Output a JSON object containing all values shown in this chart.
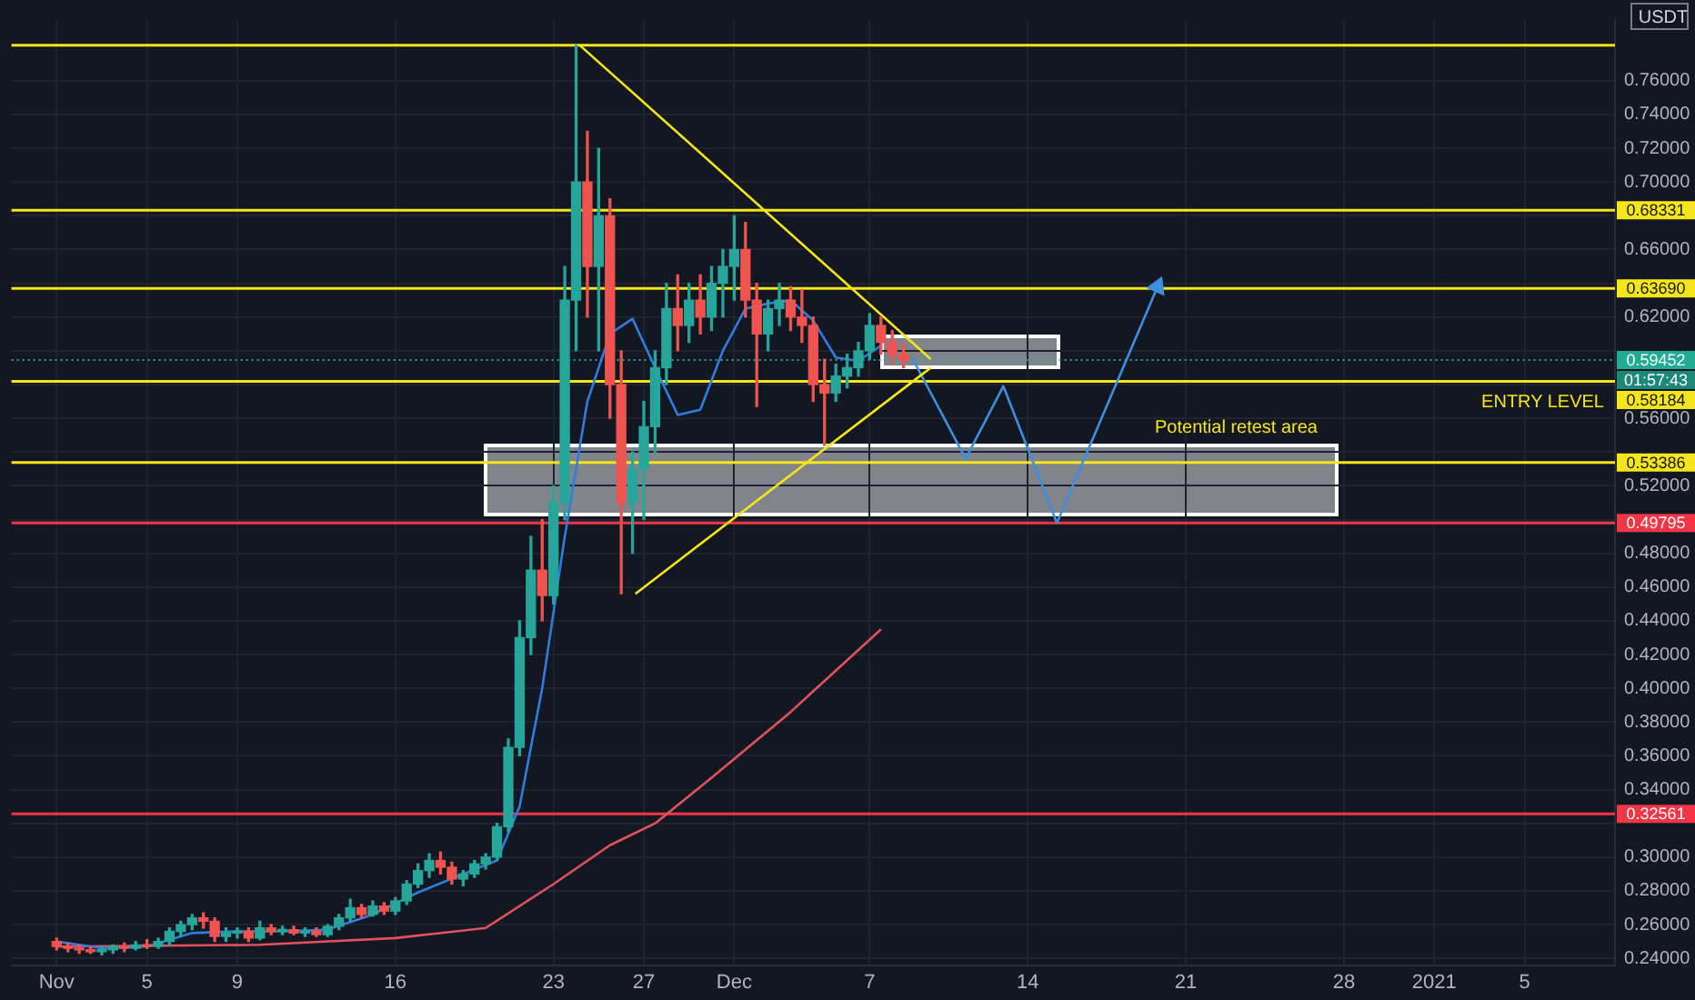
{
  "chart_data": {
    "type": "candlestick",
    "x": [
      "2020-11-01T00:00",
      "2020-11-01T12:00",
      "2020-11-02T00:00",
      "2020-11-02T12:00",
      "2020-11-03T00:00",
      "2020-11-03T12:00",
      "2020-11-04T00:00",
      "2020-11-04T12:00",
      "2020-11-05T00:00",
      "2020-11-05T12:00",
      "2020-11-06T00:00",
      "2020-11-06T12:00",
      "2020-11-07T00:00",
      "2020-11-07T12:00",
      "2020-11-08T00:00",
      "2020-11-08T12:00",
      "2020-11-09T00:00",
      "2020-11-09T12:00",
      "2020-11-10T00:00",
      "2020-11-10T12:00",
      "2020-11-11T00:00",
      "2020-11-11T12:00",
      "2020-11-12T00:00",
      "2020-11-12T12:00",
      "2020-11-13T00:00",
      "2020-11-13T12:00",
      "2020-11-14T00:00",
      "2020-11-14T12:00",
      "2020-11-15T00:00",
      "2020-11-15T12:00",
      "2020-11-16T00:00",
      "2020-11-16T12:00",
      "2020-11-17T00:00",
      "2020-11-17T12:00",
      "2020-11-18T00:00",
      "2020-11-18T12:00",
      "2020-11-19T00:00",
      "2020-11-19T12:00",
      "2020-11-20T00:00",
      "2020-11-20T12:00",
      "2020-11-21T00:00",
      "2020-11-21T12:00",
      "2020-11-22T00:00",
      "2020-11-22T12:00",
      "2020-11-23T00:00",
      "2020-11-23T12:00",
      "2020-11-24T00:00",
      "2020-11-24T12:00",
      "2020-11-25T00:00",
      "2020-11-25T12:00",
      "2020-11-26T00:00",
      "2020-11-26T12:00",
      "2020-11-27T00:00",
      "2020-11-27T12:00",
      "2020-11-28T00:00",
      "2020-11-28T12:00",
      "2020-11-29T00:00",
      "2020-11-29T12:00",
      "2020-11-30T00:00",
      "2020-11-30T12:00",
      "2020-12-01T00:00",
      "2020-12-01T12:00",
      "2020-12-02T00:00",
      "2020-12-02T12:00",
      "2020-12-03T00:00",
      "2020-12-03T12:00",
      "2020-12-04T00:00",
      "2020-12-04T12:00",
      "2020-12-05T00:00",
      "2020-12-05T12:00",
      "2020-12-06T00:00",
      "2020-12-06T12:00",
      "2020-12-07T00:00",
      "2020-12-07T12:00",
      "2020-12-08T00:00",
      "2020-12-08T12:00"
    ],
    "ohlc": [
      [
        0.25,
        0.252,
        0.245,
        0.247
      ],
      [
        0.247,
        0.249,
        0.244,
        0.246
      ],
      [
        0.246,
        0.248,
        0.243,
        0.245
      ],
      [
        0.245,
        0.247,
        0.243,
        0.244
      ],
      [
        0.244,
        0.247,
        0.242,
        0.245
      ],
      [
        0.245,
        0.248,
        0.243,
        0.247
      ],
      [
        0.247,
        0.249,
        0.244,
        0.246
      ],
      [
        0.246,
        0.25,
        0.245,
        0.248
      ],
      [
        0.248,
        0.251,
        0.246,
        0.247
      ],
      [
        0.247,
        0.252,
        0.246,
        0.25
      ],
      [
        0.25,
        0.258,
        0.248,
        0.256
      ],
      [
        0.256,
        0.262,
        0.253,
        0.26
      ],
      [
        0.26,
        0.266,
        0.257,
        0.264
      ],
      [
        0.264,
        0.267,
        0.258,
        0.262
      ],
      [
        0.262,
        0.264,
        0.25,
        0.253
      ],
      [
        0.253,
        0.258,
        0.25,
        0.255
      ],
      [
        0.255,
        0.258,
        0.252,
        0.256
      ],
      [
        0.256,
        0.258,
        0.25,
        0.252
      ],
      [
        0.252,
        0.262,
        0.251,
        0.258
      ],
      [
        0.258,
        0.26,
        0.254,
        0.256
      ],
      [
        0.256,
        0.259,
        0.254,
        0.257
      ],
      [
        0.257,
        0.259,
        0.254,
        0.255
      ],
      [
        0.255,
        0.258,
        0.253,
        0.256
      ],
      [
        0.256,
        0.258,
        0.253,
        0.254
      ],
      [
        0.254,
        0.26,
        0.253,
        0.259
      ],
      [
        0.259,
        0.266,
        0.257,
        0.264
      ],
      [
        0.264,
        0.275,
        0.262,
        0.27
      ],
      [
        0.27,
        0.272,
        0.264,
        0.266
      ],
      [
        0.266,
        0.274,
        0.265,
        0.271
      ],
      [
        0.271,
        0.273,
        0.266,
        0.268
      ],
      [
        0.268,
        0.276,
        0.266,
        0.274
      ],
      [
        0.274,
        0.286,
        0.272,
        0.284
      ],
      [
        0.284,
        0.296,
        0.282,
        0.292
      ],
      [
        0.292,
        0.302,
        0.288,
        0.298
      ],
      [
        0.298,
        0.303,
        0.29,
        0.294
      ],
      [
        0.294,
        0.297,
        0.284,
        0.287
      ],
      [
        0.287,
        0.292,
        0.283,
        0.29
      ],
      [
        0.29,
        0.298,
        0.288,
        0.296
      ],
      [
        0.296,
        0.302,
        0.293,
        0.3
      ],
      [
        0.3,
        0.32,
        0.298,
        0.318
      ],
      [
        0.318,
        0.37,
        0.315,
        0.365
      ],
      [
        0.365,
        0.44,
        0.36,
        0.43
      ],
      [
        0.43,
        0.49,
        0.42,
        0.47
      ],
      [
        0.47,
        0.5,
        0.44,
        0.455
      ],
      [
        0.455,
        0.52,
        0.45,
        0.51
      ],
      [
        0.51,
        0.65,
        0.5,
        0.63
      ],
      [
        0.63,
        0.781,
        0.6,
        0.7
      ],
      [
        0.7,
        0.73,
        0.62,
        0.65
      ],
      [
        0.65,
        0.72,
        0.6,
        0.68
      ],
      [
        0.68,
        0.69,
        0.56,
        0.58
      ],
      [
        0.58,
        0.6,
        0.456,
        0.51
      ],
      [
        0.51,
        0.54,
        0.48,
        0.53
      ],
      [
        0.53,
        0.57,
        0.5,
        0.555
      ],
      [
        0.555,
        0.6,
        0.54,
        0.59
      ],
      [
        0.59,
        0.64,
        0.58,
        0.625
      ],
      [
        0.625,
        0.645,
        0.6,
        0.615
      ],
      [
        0.615,
        0.64,
        0.605,
        0.63
      ],
      [
        0.63,
        0.645,
        0.61,
        0.62
      ],
      [
        0.62,
        0.65,
        0.612,
        0.64
      ],
      [
        0.64,
        0.66,
        0.62,
        0.65
      ],
      [
        0.65,
        0.68,
        0.63,
        0.66
      ],
      [
        0.66,
        0.676,
        0.62,
        0.63
      ],
      [
        0.63,
        0.64,
        0.567,
        0.61
      ],
      [
        0.61,
        0.63,
        0.6,
        0.625
      ],
      [
        0.625,
        0.64,
        0.615,
        0.63
      ],
      [
        0.63,
        0.638,
        0.612,
        0.62
      ],
      [
        0.62,
        0.636,
        0.605,
        0.615
      ],
      [
        0.615,
        0.62,
        0.57,
        0.58
      ],
      [
        0.58,
        0.595,
        0.544,
        0.575
      ],
      [
        0.575,
        0.592,
        0.57,
        0.585
      ],
      [
        0.585,
        0.598,
        0.578,
        0.59
      ],
      [
        0.59,
        0.605,
        0.585,
        0.6
      ],
      [
        0.6,
        0.622,
        0.595,
        0.615
      ],
      [
        0.615,
        0.62,
        0.598,
        0.605
      ],
      [
        0.605,
        0.612,
        0.592,
        0.598
      ],
      [
        0.598,
        0.604,
        0.59,
        0.59452
      ]
    ],
    "colors": [
      "#ef5350",
      "#ef5350",
      "#ef5350",
      "#ef5350",
      "#26a69a",
      "#26a69a",
      "#ef5350",
      "#26a69a",
      "#ef5350",
      "#26a69a",
      "#26a69a",
      "#26a69a",
      "#26a69a",
      "#ef5350",
      "#ef5350",
      "#26a69a",
      "#26a69a",
      "#ef5350",
      "#26a69a",
      "#ef5350",
      "#26a69a",
      "#ef5350",
      "#26a69a",
      "#ef5350",
      "#26a69a",
      "#26a69a",
      "#26a69a",
      "#ef5350",
      "#26a69a",
      "#ef5350",
      "#26a69a",
      "#26a69a",
      "#26a69a",
      "#26a69a",
      "#ef5350",
      "#ef5350",
      "#26a69a",
      "#26a69a",
      "#26a69a",
      "#26a69a",
      "#26a69a",
      "#26a69a",
      "#26a69a",
      "#ef5350",
      "#26a69a",
      "#26a69a",
      "#26a69a",
      "#ef5350",
      "#26a69a",
      "#ef5350",
      "#ef5350",
      "#26a69a",
      "#26a69a",
      "#26a69a",
      "#26a69a",
      "#ef5350",
      "#26a69a",
      "#ef5350",
      "#26a69a",
      "#26a69a",
      "#26a69a",
      "#ef5350",
      "#ef5350",
      "#26a69a",
      "#26a69a",
      "#ef5350",
      "#ef5350",
      "#ef5350",
      "#ef5350",
      "#26a69a",
      "#26a69a",
      "#26a69a",
      "#26a69a",
      "#ef5350",
      "#ef5350",
      "#ef5350"
    ],
    "series": [
      {
        "type": "line",
        "color": "#2f7de1",
        "x": [
          "2020-11-01T00:00",
          "2020-11-03T00:00",
          "2020-11-05T00:00",
          "2020-11-07T00:00",
          "2020-11-09T00:00",
          "2020-11-11T00:00",
          "2020-11-13T00:00",
          "2020-11-15T00:00",
          "2020-11-17T00:00",
          "2020-11-19T00:00",
          "2020-11-20T12:00",
          "2020-11-21T12:00",
          "2020-11-22T12:00",
          "2020-11-23T12:00",
          "2020-11-24T12:00",
          "2020-11-25T12:00",
          "2020-11-26T12:00",
          "2020-11-27T12:00",
          "2020-11-28T12:00",
          "2020-11-29T12:00",
          "2020-11-30T12:00",
          "2020-12-01T12:00",
          "2020-12-02T12:00",
          "2020-12-03T12:00",
          "2020-12-04T12:00",
          "2020-12-05T12:00",
          "2020-12-06T12:00",
          "2020-12-07T12:00"
        ],
        "values": [
          0.25,
          0.246,
          0.247,
          0.255,
          0.256,
          0.256,
          0.257,
          0.266,
          0.279,
          0.29,
          0.298,
          0.33,
          0.4,
          0.49,
          0.57,
          0.61,
          0.619,
          0.59,
          0.562,
          0.565,
          0.6,
          0.625,
          0.628,
          0.63,
          0.618,
          0.596,
          0.594,
          0.603
        ]
      },
      {
        "type": "line",
        "color": "#e0525e",
        "x": [
          "2020-11-01T00:00",
          "2020-11-10T00:00",
          "2020-11-16T00:00",
          "2020-11-20T00:00",
          "2020-11-23T00:00",
          "2020-11-25T12:00",
          "2020-11-27T12:00",
          "2020-11-30T00:00",
          "2020-12-03T12:00",
          "2020-12-07T12:00"
        ],
        "values": [
          0.247,
          0.248,
          0.252,
          0.258,
          0.284,
          0.307,
          0.32,
          0.347,
          0.386,
          0.435
        ]
      },
      {
        "type": "line",
        "color": "#f5e51b",
        "x": [
          "2020-11-24T04:00",
          "2020-12-09T17:00"
        ],
        "values": [
          0.781,
          0.595
        ]
      },
      {
        "type": "line",
        "color": "#f5e51b",
        "x": [
          "2020-11-26T15:00",
          "2020-12-09T17:00"
        ],
        "values": [
          0.456,
          0.59
        ]
      },
      {
        "type": "line",
        "color": "#3d8fe0",
        "x": [
          "2020-12-08T21:00",
          "2020-12-11T06:00",
          "2020-12-12T22:00",
          "2020-12-15T07:00",
          "2020-12-19T18:00"
        ],
        "values": [
          0.596,
          0.536,
          0.579,
          0.498,
          0.638
        ]
      }
    ],
    "xlim": [
      "2020-10-30",
      "2021-01-09"
    ],
    "xticks": [
      {
        "value": "2020-11-01",
        "label": "Nov"
      },
      {
        "value": "2020-11-05",
        "label": "5"
      },
      {
        "value": "2020-11-09",
        "label": "9"
      },
      {
        "value": "2020-11-16",
        "label": "16"
      },
      {
        "value": "2020-11-23",
        "label": "23"
      },
      {
        "value": "2020-11-27",
        "label": "27"
      },
      {
        "value": "2020-12-01",
        "label": "Dec"
      },
      {
        "value": "2020-12-07",
        "label": "7"
      },
      {
        "value": "2020-12-14",
        "label": "14"
      },
      {
        "value": "2020-12-21",
        "label": "21"
      },
      {
        "value": "2020-12-28",
        "label": "28"
      },
      {
        "value": "2021-01-01",
        "label": "2021"
      },
      {
        "value": "2021-01-05",
        "label": "5"
      }
    ],
    "ylim": [
      0.236,
      0.796
    ],
    "yticks": [
      {
        "value": 0.24,
        "label": "0.24000"
      },
      {
        "value": 0.26,
        "label": "0.26000"
      },
      {
        "value": 0.28,
        "label": "0.28000"
      },
      {
        "value": 0.3,
        "label": "0.30000"
      },
      {
        "value": 0.32,
        "label": null
      },
      {
        "value": 0.34,
        "label": "0.34000"
      },
      {
        "value": 0.36,
        "label": "0.36000"
      },
      {
        "value": 0.38,
        "label": "0.38000"
      },
      {
        "value": 0.4,
        "label": "0.40000"
      },
      {
        "value": 0.42,
        "label": "0.42000"
      },
      {
        "value": 0.44,
        "label": "0.44000"
      },
      {
        "value": 0.46,
        "label": "0.46000"
      },
      {
        "value": 0.48,
        "label": "0.48000"
      },
      {
        "value": 0.5,
        "label": null
      },
      {
        "value": 0.52,
        "label": "0.52000"
      },
      {
        "value": 0.54,
        "label": null
      },
      {
        "value": 0.56,
        "label": "0.56000"
      },
      {
        "value": 0.58,
        "label": null
      },
      {
        "value": 0.6,
        "label": null
      },
      {
        "value": 0.62,
        "label": "0.62000"
      },
      {
        "value": 0.64,
        "label": null
      },
      {
        "value": 0.66,
        "label": "0.66000"
      },
      {
        "value": 0.68,
        "label": null
      },
      {
        "value": 0.7,
        "label": "0.70000"
      },
      {
        "value": 0.72,
        "label": "0.72000"
      },
      {
        "value": 0.74,
        "label": "0.74000"
      },
      {
        "value": 0.76,
        "label": "0.76000"
      }
    ],
    "ref_lines": [
      {
        "axis": "y",
        "value": 0.781,
        "color": "#f5e51b"
      },
      {
        "axis": "y",
        "value": 0.68331,
        "label": "0.68331",
        "color": "#f5e51b"
      },
      {
        "axis": "y",
        "value": 0.6369,
        "label": "0.63690",
        "color": "#f5e51b"
      },
      {
        "axis": "y",
        "value": 0.59452,
        "label": "0.59452",
        "color": "#22ab94",
        "line_style": "dotted"
      },
      {
        "axis": "y",
        "value": 0.58184,
        "label": "0.58184",
        "color": "#f5e51b"
      },
      {
        "axis": "y",
        "value": 0.53386,
        "label": "0.53386",
        "color": "#f5e51b"
      },
      {
        "axis": "y",
        "value": 0.49795,
        "label": "0.49795",
        "color": "#f23645"
      },
      {
        "axis": "y",
        "value": 0.32561,
        "label": "0.32561",
        "color": "#f23645"
      }
    ],
    "annotations": [
      "USDT",
      "01:57:43",
      "ENTRY LEVEL",
      "Potential retest area"
    ],
    "marker": "none",
    "grid": true,
    "legend": false
  }
}
